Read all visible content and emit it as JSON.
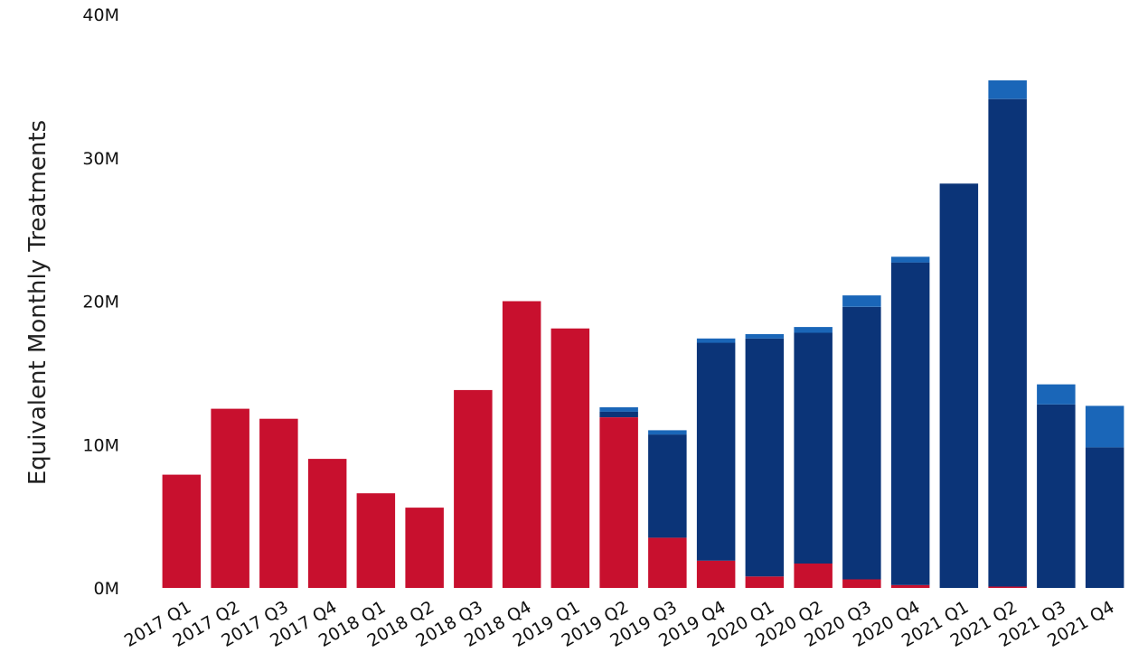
{
  "chart_data": {
    "type": "bar",
    "stacked": true,
    "title": "",
    "xlabel": "",
    "ylabel": "Equivalent Monthly Treatments",
    "ylim": [
      0,
      40000000
    ],
    "yticks": [
      "0M",
      "10M",
      "20M",
      "30M",
      "40M"
    ],
    "grid": false,
    "legend": "none",
    "categories": [
      "2017 Q1",
      "2017 Q2",
      "2017 Q3",
      "2017 Q4",
      "2018 Q1",
      "2018 Q2",
      "2018 Q3",
      "2018 Q4",
      "2019 Q1",
      "2019 Q2",
      "2019 Q3",
      "2019 Q4",
      "2020 Q1",
      "2020 Q2",
      "2020 Q3",
      "2020 Q4",
      "2021 Q1",
      "2021 Q2",
      "2021 Q3",
      "2021 Q4"
    ],
    "series": [
      {
        "color": "#c8102e",
        "values": [
          7900000,
          12500000,
          11800000,
          9000000,
          6600000,
          5600000,
          13800000,
          20000000,
          18100000,
          11900000,
          3500000,
          1900000,
          800000,
          1700000,
          600000,
          200000,
          0,
          100000,
          0,
          0
        ]
      },
      {
        "color": "#0b3478",
        "values": [
          0,
          0,
          0,
          0,
          0,
          0,
          0,
          0,
          0,
          400000,
          7200000,
          15200000,
          16600000,
          16100000,
          19000000,
          22500000,
          28200000,
          34000000,
          12800000,
          9800000
        ]
      },
      {
        "color": "#1a66b8",
        "values": [
          0,
          0,
          0,
          0,
          0,
          0,
          0,
          0,
          0,
          300000,
          300000,
          300000,
          300000,
          400000,
          800000,
          400000,
          0,
          1300000,
          1400000,
          2900000
        ]
      }
    ]
  }
}
